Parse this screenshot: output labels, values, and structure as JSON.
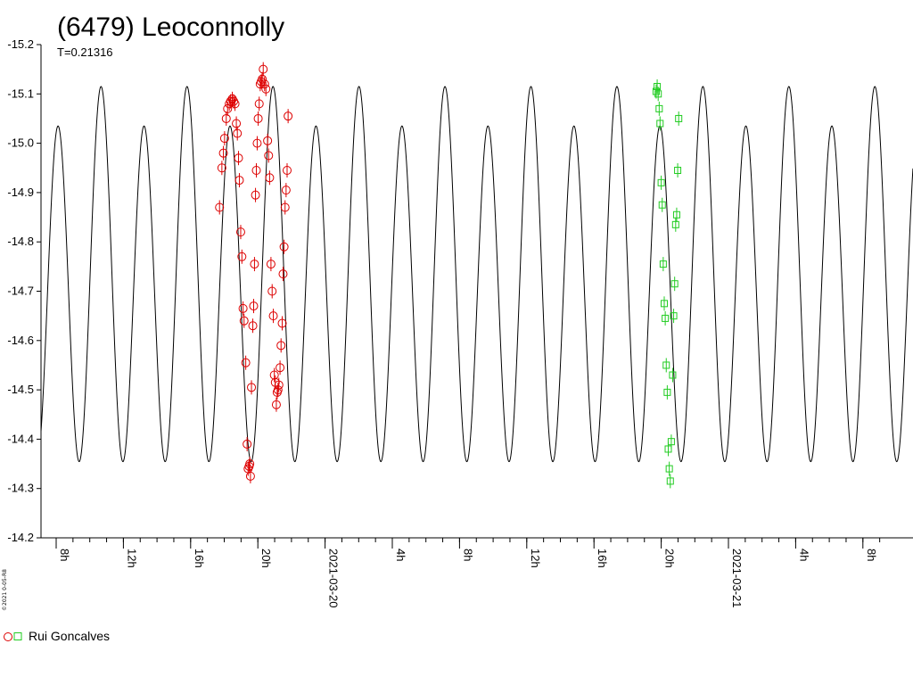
{
  "chart_data": {
    "type": "scatter",
    "title": "(6479) Leoconnolly",
    "subtitle": "T=0.21316",
    "credit": "©2021 0-05-R8",
    "y_axis": {
      "inverted": true,
      "range": [
        -15.2,
        -14.2
      ],
      "ticks": [
        "-15.2",
        "-15.1",
        "-15.0",
        "-14.9",
        "-14.8",
        "-14.7",
        "-14.6",
        "-14.5",
        "-14.4",
        "-14.3",
        "-14.2"
      ]
    },
    "x_axis": {
      "unit": "hours since 2021-03-19 06:00",
      "range": [
        0,
        51.5
      ],
      "ticks": [
        {
          "t": 2,
          "label": "8h"
        },
        {
          "t": 6,
          "label": "12h"
        },
        {
          "t": 10,
          "label": "16h"
        },
        {
          "t": 14,
          "label": "20h"
        },
        {
          "t": 18,
          "label": "2021-03-20"
        },
        {
          "t": 22,
          "label": "4h"
        },
        {
          "t": 26,
          "label": "8h"
        },
        {
          "t": 30,
          "label": "12h"
        },
        {
          "t": 34,
          "label": "16h"
        },
        {
          "t": 38,
          "label": "20h"
        },
        {
          "t": 42,
          "label": "2021-03-21"
        },
        {
          "t": 46,
          "label": "4h"
        },
        {
          "t": 50,
          "label": "8h"
        }
      ],
      "minor_step_hours": 1
    },
    "model_curve": {
      "period_hours": 5.1158,
      "phase_ref_hours": 4.67,
      "mean_mag": -14.715,
      "amp_main": 0.36,
      "amp_odd": 0.04
    },
    "series": [
      {
        "name": "Rui Goncalves",
        "marker": "circle",
        "color": "#dd0000",
        "points": [
          [
            11.72,
            -14.87
          ],
          [
            11.86,
            -14.95
          ],
          [
            11.95,
            -14.98
          ],
          [
            12.02,
            -15.01
          ],
          [
            12.12,
            -15.05
          ],
          [
            12.2,
            -15.07
          ],
          [
            12.3,
            -15.08
          ],
          [
            12.38,
            -15.085
          ],
          [
            12.48,
            -15.09
          ],
          [
            12.56,
            -15.085
          ],
          [
            12.64,
            -15.08
          ],
          [
            12.72,
            -15.04
          ],
          [
            12.78,
            -15.02
          ],
          [
            12.85,
            -14.97
          ],
          [
            12.9,
            -14.925
          ],
          [
            12.98,
            -14.82
          ],
          [
            13.05,
            -14.77
          ],
          [
            13.12,
            -14.665
          ],
          [
            13.18,
            -14.64
          ],
          [
            13.28,
            -14.555
          ],
          [
            13.36,
            -14.39
          ],
          [
            13.42,
            -14.34
          ],
          [
            13.48,
            -14.345
          ],
          [
            13.52,
            -14.35
          ],
          [
            13.56,
            -14.325
          ],
          [
            13.62,
            -14.505
          ],
          [
            13.7,
            -14.63
          ],
          [
            13.75,
            -14.67
          ],
          [
            13.8,
            -14.755
          ],
          [
            13.86,
            -14.895
          ],
          [
            13.91,
            -14.945
          ],
          [
            13.96,
            -15.0
          ],
          [
            14.02,
            -15.05
          ],
          [
            14.08,
            -15.08
          ],
          [
            14.14,
            -15.12
          ],
          [
            14.2,
            -15.125
          ],
          [
            14.26,
            -15.13
          ],
          [
            14.32,
            -15.15
          ],
          [
            14.4,
            -15.12
          ],
          [
            14.48,
            -15.11
          ],
          [
            14.58,
            -15.005
          ],
          [
            14.64,
            -14.975
          ],
          [
            14.7,
            -14.93
          ],
          [
            14.78,
            -14.755
          ],
          [
            14.85,
            -14.7
          ],
          [
            14.92,
            -14.65
          ],
          [
            14.98,
            -14.53
          ],
          [
            15.04,
            -14.515
          ],
          [
            15.1,
            -14.47
          ],
          [
            15.15,
            -14.495
          ],
          [
            15.2,
            -14.5
          ],
          [
            15.25,
            -14.51
          ],
          [
            15.32,
            -14.545
          ],
          [
            15.38,
            -14.59
          ],
          [
            15.45,
            -14.635
          ],
          [
            15.5,
            -14.735
          ],
          [
            15.56,
            -14.79
          ],
          [
            15.62,
            -14.87
          ],
          [
            15.68,
            -14.905
          ],
          [
            15.74,
            -14.945
          ],
          [
            15.8,
            -15.055
          ]
        ]
      },
      {
        "name": "",
        "marker": "square",
        "color": "#22cc22",
        "points": [
          [
            37.7,
            -15.105
          ],
          [
            37.76,
            -15.115
          ],
          [
            37.82,
            -15.1
          ],
          [
            37.88,
            -15.07
          ],
          [
            37.93,
            -15.04
          ],
          [
            38.0,
            -14.92
          ],
          [
            38.06,
            -14.875
          ],
          [
            38.12,
            -14.755
          ],
          [
            38.18,
            -14.675
          ],
          [
            38.24,
            -14.645
          ],
          [
            38.3,
            -14.55
          ],
          [
            38.36,
            -14.495
          ],
          [
            38.42,
            -14.38
          ],
          [
            38.48,
            -14.34
          ],
          [
            38.54,
            -14.315
          ],
          [
            38.6,
            -14.395
          ],
          [
            38.68,
            -14.53
          ],
          [
            38.74,
            -14.65
          ],
          [
            38.8,
            -14.715
          ],
          [
            38.86,
            -14.835
          ],
          [
            38.92,
            -14.855
          ],
          [
            38.98,
            -14.945
          ],
          [
            39.04,
            -15.05
          ]
        ]
      }
    ],
    "legend": {
      "placement": "bottom-left",
      "label": "Rui Goncalves"
    }
  }
}
